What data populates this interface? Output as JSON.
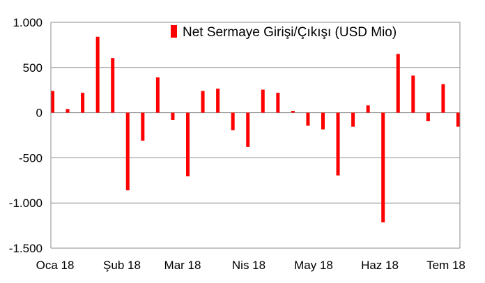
{
  "chart_data": {
    "type": "bar",
    "ylim": [
      -1500,
      1000
    ],
    "yticks": [
      {
        "value": 1000,
        "label": "1.000"
      },
      {
        "value": 500,
        "label": "500"
      },
      {
        "value": 0,
        "label": "0"
      },
      {
        "value": -500,
        "label": "-500"
      },
      {
        "value": -1000,
        "label": "-1.000"
      },
      {
        "value": -1500,
        "label": "-1.500"
      }
    ],
    "xticks": [
      "Oca 18",
      "Şub 18",
      "Mar 18",
      "Nis 18",
      "May 18",
      "Haz 18",
      "Tem 18"
    ],
    "grid": true,
    "legend": "top-right",
    "bar_color": "#ff0000",
    "series": [
      {
        "name": "Net Sermaye Girişi/Çıkışı (USD Mio)",
        "values": [
          240,
          40,
          220,
          840,
          605,
          -860,
          -310,
          390,
          -80,
          -705,
          240,
          265,
          -195,
          -380,
          255,
          220,
          20,
          -145,
          -185,
          -695,
          -155,
          80,
          -1215,
          650,
          410,
          -95,
          315,
          -155
        ]
      }
    ]
  }
}
